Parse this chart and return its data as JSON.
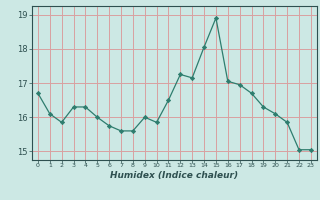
{
  "x": [
    0,
    1,
    2,
    3,
    4,
    5,
    6,
    7,
    8,
    9,
    10,
    11,
    12,
    13,
    14,
    15,
    16,
    17,
    18,
    19,
    20,
    21,
    22,
    23
  ],
  "y": [
    16.7,
    16.1,
    15.85,
    16.3,
    16.3,
    16.0,
    15.75,
    15.6,
    15.6,
    16.0,
    15.85,
    16.5,
    17.25,
    17.15,
    18.05,
    18.9,
    17.05,
    16.95,
    16.7,
    16.3,
    16.1,
    15.85,
    15.05,
    15.05
  ],
  "line_color": "#2e7d6e",
  "marker": "D",
  "marker_size": 2.2,
  "background_color": "#cce8e4",
  "grid_color": "#d9a0a0",
  "tick_color": "#2e5050",
  "xlabel": "Humidex (Indice chaleur)",
  "ylim": [
    14.75,
    19.25
  ],
  "yticks": [
    15,
    16,
    17,
    18,
    19
  ],
  "xticks": [
    0,
    1,
    2,
    3,
    4,
    5,
    6,
    7,
    8,
    9,
    10,
    11,
    12,
    13,
    14,
    15,
    16,
    17,
    18,
    19,
    20,
    21,
    22,
    23
  ]
}
